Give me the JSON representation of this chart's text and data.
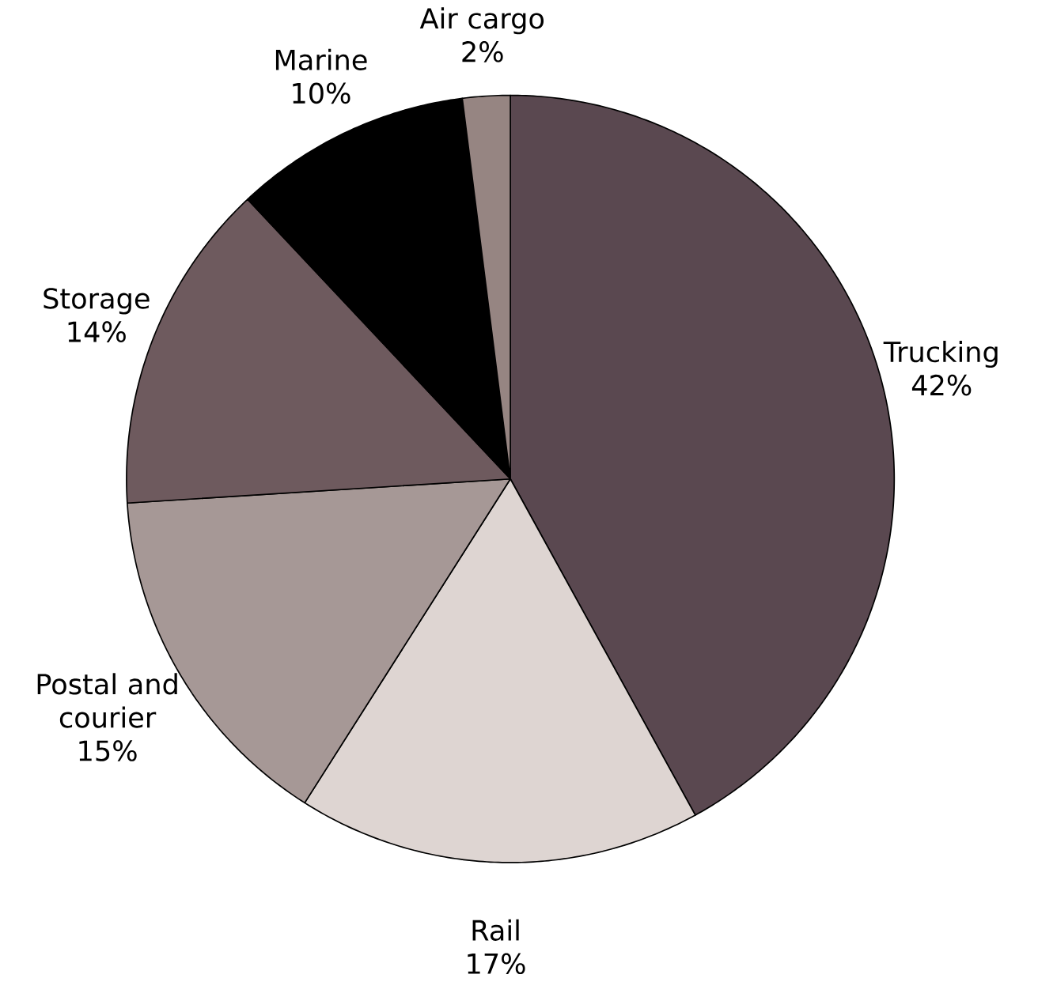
{
  "chart_data": {
    "type": "pie",
    "categories": [
      "Trucking",
      "Rail",
      "Postal and courier",
      "Storage",
      "Marine",
      "Air cargo"
    ],
    "values": [
      42,
      17,
      15,
      14,
      10,
      2
    ],
    "colors": [
      "#5a4850",
      "#ded5d2",
      "#a69896",
      "#6e5a5e",
      "#000000",
      "#968582"
    ],
    "value_labels": [
      "42%",
      "17%",
      "15%",
      "14%",
      "10%",
      "2%"
    ]
  }
}
